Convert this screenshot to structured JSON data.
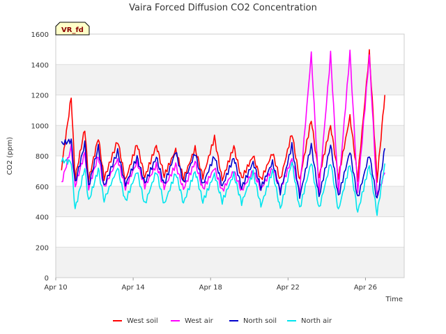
{
  "chart_data": {
    "type": "line",
    "title": "Vaira Forced Diffusion CO2 Concentration",
    "xlabel": "Time",
    "ylabel": "CO2 (ppm)",
    "badge": "VR_fd",
    "ylim": [
      0,
      1600
    ],
    "yticks": [
      0,
      200,
      400,
      600,
      800,
      1000,
      1200,
      1400,
      1600
    ],
    "xlim": [
      "Apr 10",
      "Apr 28"
    ],
    "xticks": [
      "Apr 10",
      "Apr 14",
      "Apr 18",
      "Apr 22",
      "Apr 26"
    ],
    "grid": true,
    "legend_position": "bottom",
    "x_units": "days",
    "series": [
      {
        "name": "West soil",
        "color": "#ff0000",
        "x": [
          10.3,
          10.8,
          11.0,
          11.5,
          11.7,
          12.2,
          12.5,
          13.2,
          13.6,
          14.2,
          14.6,
          15.2,
          15.6,
          16.2,
          16.6,
          17.2,
          17.6,
          18.2,
          18.6,
          19.2,
          19.6,
          20.2,
          20.6,
          21.2,
          21.6,
          22.2,
          22.6,
          23.2,
          23.6,
          24.2,
          24.6,
          25.2,
          25.6,
          26.2,
          26.6,
          27.0
        ],
        "y": [
          720,
          1190,
          650,
          980,
          640,
          920,
          650,
          900,
          640,
          880,
          660,
          870,
          670,
          840,
          650,
          850,
          660,
          920,
          640,
          860,
          650,
          800,
          640,
          820,
          640,
          950,
          640,
          1040,
          660,
          1000,
          660,
          1060,
          650,
          1480,
          640,
          1200
        ]
      },
      {
        "name": "West air",
        "color": "#ff00ff",
        "x": [
          10.3,
          10.8,
          11.0,
          11.5,
          11.7,
          12.2,
          12.5,
          13.2,
          13.6,
          14.2,
          14.6,
          15.2,
          15.6,
          16.2,
          16.6,
          17.2,
          17.6,
          18.2,
          18.6,
          19.2,
          19.6,
          20.2,
          20.6,
          21.2,
          21.6,
          22.2,
          22.6,
          23.2,
          23.6,
          24.2,
          24.6,
          25.2,
          25.6,
          26.2,
          26.6,
          27.0
        ],
        "y": [
          620,
          860,
          600,
          820,
          590,
          800,
          590,
          780,
          590,
          760,
          600,
          740,
          590,
          740,
          580,
          760,
          580,
          720,
          570,
          700,
          570,
          700,
          580,
          720,
          580,
          780,
          560,
          1470,
          560,
          1470,
          560,
          1480,
          560,
          1460,
          540,
          690
        ]
      },
      {
        "name": "North soil",
        "color": "#0000cc",
        "x": [
          10.3,
          10.8,
          11.0,
          11.5,
          11.7,
          12.2,
          12.5,
          13.2,
          13.6,
          14.2,
          14.6,
          15.2,
          15.6,
          16.2,
          16.6,
          17.2,
          17.6,
          18.2,
          18.6,
          19.2,
          19.6,
          20.2,
          20.6,
          21.2,
          21.6,
          22.2,
          22.6,
          23.2,
          23.6,
          24.2,
          24.6,
          25.2,
          25.6,
          26.2,
          26.6,
          27.0
        ],
        "y": [
          880,
          900,
          620,
          880,
          600,
          860,
          600,
          830,
          610,
          790,
          620,
          790,
          610,
          830,
          620,
          820,
          610,
          800,
          600,
          790,
          590,
          760,
          590,
          760,
          560,
          870,
          530,
          870,
          530,
          870,
          530,
          830,
          520,
          810,
          510,
          850
        ]
      },
      {
        "name": "North air",
        "color": "#00e5ee",
        "x": [
          10.3,
          10.8,
          11.0,
          11.5,
          11.7,
          12.2,
          12.5,
          13.2,
          13.6,
          14.2,
          14.6,
          15.2,
          15.6,
          16.2,
          16.6,
          17.2,
          17.6,
          18.2,
          18.6,
          19.2,
          19.6,
          20.2,
          20.6,
          21.2,
          21.6,
          22.2,
          22.6,
          23.2,
          23.6,
          24.2,
          24.6,
          25.2,
          25.6,
          26.2,
          26.6,
          27.0
        ],
        "y": [
          770,
          760,
          450,
          720,
          500,
          710,
          510,
          720,
          500,
          700,
          480,
          700,
          480,
          690,
          490,
          700,
          500,
          680,
          500,
          680,
          490,
          690,
          470,
          700,
          450,
          760,
          450,
          760,
          450,
          760,
          440,
          750,
          430,
          740,
          420,
          750
        ]
      }
    ]
  }
}
